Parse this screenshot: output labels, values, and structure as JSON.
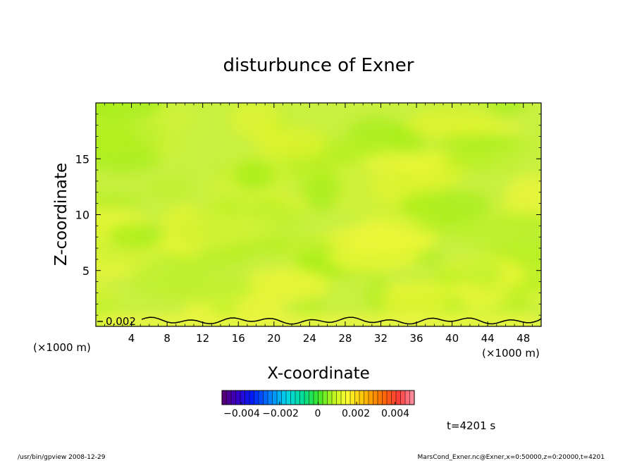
{
  "chart_data": {
    "type": "heatmap",
    "title": "disturbunce of Exner",
    "xlabel": "X-coordinate",
    "ylabel": "Z-coordinate",
    "x_unit_left": "(×1000 m)",
    "x_unit_right": "(×1000 m)",
    "xlim": [
      0,
      50
    ],
    "ylim": [
      0,
      20
    ],
    "x_ticks": [
      4,
      8,
      12,
      16,
      20,
      24,
      28,
      32,
      36,
      40,
      44,
      48
    ],
    "y_ticks": [
      5,
      10,
      15
    ],
    "contour_label": "0.002",
    "colorbar": {
      "min": -0.005,
      "max": 0.005,
      "tick_values": [
        -0.004,
        -0.002,
        0,
        0.002,
        0.004
      ],
      "tick_labels": [
        "−0.004",
        "−0.002",
        "0",
        "0.002",
        "0.004"
      ]
    },
    "time_label": "t=4201 s"
  },
  "footer": {
    "left": "/usr/bin/gpview   2008-12-29",
    "right": "MarsCond_Exner.nc@Exner,x=0:50000,z=0:20000,t=4201"
  }
}
